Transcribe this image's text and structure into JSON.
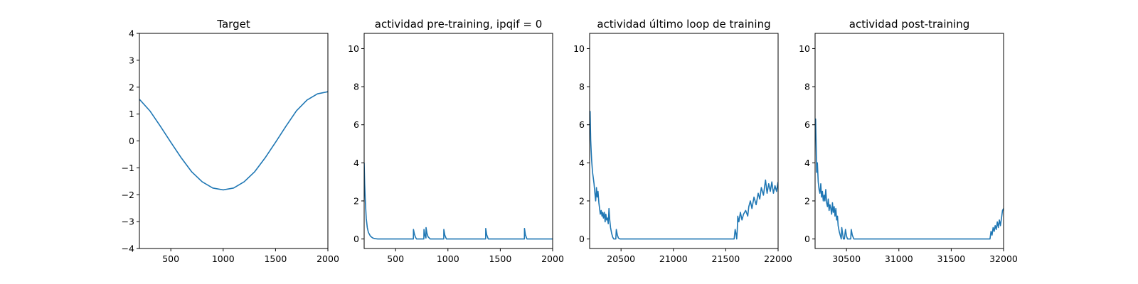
{
  "colors": {
    "line": "#1f77b4",
    "axes": "#000000",
    "background": "#ffffff"
  },
  "chart_data": [
    {
      "type": "line",
      "title": "Target",
      "xlim": [
        200,
        2000
      ],
      "ylim": [
        -4,
        4
      ],
      "xticks": [
        500,
        1000,
        1500,
        2000
      ],
      "yticks": [
        -4,
        -3,
        -2,
        -1,
        0,
        1,
        2,
        3,
        4
      ],
      "xtick_labels": [
        "500",
        "1000",
        "1500",
        "2000"
      ],
      "ytick_labels": [
        "−4",
        "−3",
        "−2",
        "−1",
        "0",
        "1",
        "2",
        "3",
        "4"
      ],
      "grid": false,
      "series": [
        {
          "x": [
            200,
            300,
            400,
            500,
            600,
            700,
            800,
            900,
            1000,
            1100,
            1200,
            1300,
            1400,
            1500,
            1600,
            1700,
            1800,
            1900,
            2000
          ],
          "y": [
            1.55,
            1.12,
            0.55,
            -0.05,
            -0.63,
            -1.15,
            -1.52,
            -1.75,
            -1.82,
            -1.75,
            -1.52,
            -1.15,
            -0.63,
            -0.05,
            0.55,
            1.12,
            1.52,
            1.75,
            1.83
          ]
        }
      ]
    },
    {
      "type": "line",
      "title": "actividad pre-training, ipqif = 0",
      "xlim": [
        200,
        2000
      ],
      "ylim": [
        -0.5,
        10.8
      ],
      "xticks": [
        500,
        1000,
        1500,
        2000
      ],
      "yticks": [
        0,
        2,
        4,
        6,
        8,
        10
      ],
      "xtick_labels": [
        "500",
        "1000",
        "1500",
        "2000"
      ],
      "ytick_labels": [
        "0",
        "2",
        "4",
        "6",
        "8",
        "10"
      ],
      "grid": false,
      "series": [
        {
          "x": [
            200,
            205,
            210,
            220,
            230,
            240,
            260,
            280,
            300,
            330,
            670,
            671,
            680,
            690,
            700,
            770,
            771,
            780,
            790,
            791,
            800,
            810,
            830,
            960,
            961,
            970,
            985,
            1360,
            1361,
            1370,
            1385,
            1730,
            1731,
            1740,
            1755,
            2000
          ],
          "y": [
            4.0,
            2.9,
            2.1,
            1.1,
            0.6,
            0.35,
            0.15,
            0.06,
            0.02,
            0.0,
            0.0,
            0.5,
            0.25,
            0.1,
            0.0,
            0.0,
            0.5,
            0.2,
            0.05,
            0.6,
            0.3,
            0.12,
            0.0,
            0.0,
            0.5,
            0.2,
            0.0,
            0.0,
            0.55,
            0.22,
            0.0,
            0.0,
            0.55,
            0.22,
            0.0,
            0.0
          ]
        }
      ]
    },
    {
      "type": "line",
      "title": "actividad último loop de training",
      "xlim": [
        20200,
        22000
      ],
      "ylim": [
        -0.5,
        10.8
      ],
      "xticks": [
        20500,
        21000,
        21500,
        22000
      ],
      "yticks": [
        0,
        2,
        4,
        6,
        8,
        10
      ],
      "xtick_labels": [
        "20500",
        "21000",
        "21500",
        "22000"
      ],
      "ytick_labels": [
        "0",
        "2",
        "4",
        "6",
        "8",
        "10"
      ],
      "grid": false,
      "series": [
        {
          "x": [
            20200,
            20205,
            20210,
            20215,
            20220,
            20228,
            20235,
            20242,
            20250,
            20258,
            20265,
            20272,
            20280,
            20288,
            20295,
            20302,
            20310,
            20318,
            20325,
            20332,
            20340,
            20348,
            20355,
            20362,
            20370,
            20378,
            20385,
            20392,
            20400,
            20410,
            20420,
            20430,
            20440,
            20450,
            20455,
            20465,
            20475,
            20490,
            20500,
            20600,
            21000,
            21580,
            21590,
            21600,
            21605,
            21610,
            21615,
            21625,
            21640,
            21655,
            21670,
            21690,
            21710,
            21720,
            21735,
            21750,
            21770,
            21790,
            21810,
            21825,
            21840,
            21860,
            21880,
            21895,
            21910,
            21925,
            21940,
            21955,
            21970,
            21985,
            22000
          ],
          "y": [
            6.0,
            6.7,
            5.2,
            4.6,
            4.1,
            3.5,
            3.2,
            2.9,
            2.4,
            2.0,
            2.7,
            2.2,
            2.5,
            1.9,
            1.6,
            1.3,
            1.5,
            1.2,
            1.4,
            1.1,
            1.4,
            0.9,
            1.3,
            1.0,
            1.1,
            0.8,
            1.6,
            1.0,
            0.6,
            0.3,
            0.1,
            0.0,
            0.0,
            0.0,
            0.5,
            0.2,
            0.05,
            0.0,
            0.0,
            0.0,
            0.0,
            0.0,
            0.5,
            0.2,
            0.0,
            0.5,
            1.2,
            0.9,
            1.4,
            1.0,
            1.3,
            1.5,
            1.2,
            1.7,
            2.0,
            1.6,
            2.2,
            1.8,
            2.4,
            2.1,
            2.7,
            2.3,
            3.1,
            2.4,
            2.9,
            2.5,
            3.0,
            2.4,
            2.8,
            2.5,
            3.0
          ]
        }
      ]
    },
    {
      "type": "line",
      "title": "actividad post-training",
      "xlim": [
        30200,
        32000
      ],
      "ylim": [
        -0.5,
        10.8
      ],
      "xticks": [
        30500,
        31000,
        31500,
        32000
      ],
      "yticks": [
        0,
        2,
        4,
        6,
        8,
        10
      ],
      "xtick_labels": [
        "30500",
        "31000",
        "31500",
        "32000"
      ],
      "ytick_labels": [
        "0",
        "2",
        "4",
        "6",
        "8",
        "10"
      ],
      "grid": false,
      "series": [
        {
          "x": [
            30200,
            30205,
            30210,
            30215,
            30222,
            30230,
            30238,
            30246,
            30254,
            30262,
            30270,
            30278,
            30286,
            30294,
            30302,
            30310,
            30318,
            30326,
            30334,
            30342,
            30350,
            30358,
            30366,
            30374,
            30382,
            30390,
            30398,
            30406,
            30414,
            30420,
            30430,
            30440,
            30450,
            30455,
            30465,
            30470,
            30480,
            30490,
            30500,
            30510,
            30525,
            30540,
            30545,
            30555,
            30570,
            30580,
            30600,
            31000,
            31870,
            31880,
            31890,
            31900,
            31910,
            31920,
            31930,
            31940,
            31950,
            31960,
            31970,
            31980,
            31990,
            32000
          ],
          "y": [
            5.5,
            6.3,
            4.9,
            3.5,
            4.0,
            3.0,
            2.6,
            2.4,
            2.9,
            2.2,
            2.5,
            2.0,
            2.3,
            2.0,
            2.6,
            1.9,
            1.7,
            2.1,
            1.5,
            1.8,
            1.6,
            1.3,
            1.9,
            1.4,
            1.7,
            1.2,
            1.6,
            1.0,
            1.2,
            0.7,
            0.4,
            0.2,
            0.0,
            0.6,
            0.2,
            0.0,
            0.0,
            0.5,
            0.15,
            0.0,
            0.0,
            0.0,
            0.5,
            0.2,
            0.0,
            0.0,
            0.0,
            0.0,
            0.0,
            0.4,
            0.2,
            0.6,
            0.4,
            0.7,
            0.5,
            0.9,
            0.6,
            1.0,
            0.7,
            1.1,
            1.5,
            1.6
          ]
        }
      ]
    }
  ]
}
